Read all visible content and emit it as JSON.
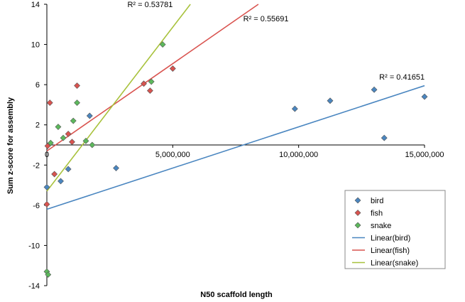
{
  "chart_data": {
    "type": "scatter",
    "xlabel": "N50 scaffold length",
    "ylabel": "Sum z-score for assembly",
    "xlim": [
      0,
      15000000
    ],
    "ylim": [
      -14,
      14
    ],
    "x_ticks": [
      {
        "value": 0,
        "label": "0"
      },
      {
        "value": 5000000,
        "label": "5,000,000"
      },
      {
        "value": 10000000,
        "label": "10,000,000"
      },
      {
        "value": 15000000,
        "label": "15,000,000"
      }
    ],
    "y_ticks": [
      {
        "value": 14,
        "label": "14"
      },
      {
        "value": 10,
        "label": "10"
      },
      {
        "value": 6,
        "label": "6"
      },
      {
        "value": 2,
        "label": "2"
      },
      {
        "value": -2,
        "label": "-2"
      },
      {
        "value": -6,
        "label": "-6"
      },
      {
        "value": -10,
        "label": "-10"
      },
      {
        "value": -14,
        "label": "-14"
      }
    ],
    "legend_position": "right",
    "series": [
      {
        "name": "bird",
        "color": "#4a86c0",
        "marker": "diamond",
        "points": [
          {
            "x": 0,
            "y": -4.2
          },
          {
            "x": 550000,
            "y": -3.6
          },
          {
            "x": 850000,
            "y": -2.4
          },
          {
            "x": 1700000,
            "y": 2.9
          },
          {
            "x": 2750000,
            "y": -2.3
          },
          {
            "x": 9850000,
            "y": 3.6
          },
          {
            "x": 11250000,
            "y": 4.4
          },
          {
            "x": 13000000,
            "y": 5.5
          },
          {
            "x": 13400000,
            "y": 0.7
          },
          {
            "x": 15000000,
            "y": 4.8
          }
        ]
      },
      {
        "name": "fish",
        "color": "#d9534f",
        "marker": "diamond",
        "points": [
          {
            "x": 0,
            "y": -5.9
          },
          {
            "x": 30000,
            "y": -0.1
          },
          {
            "x": 120000,
            "y": 4.2
          },
          {
            "x": 300000,
            "y": -2.9
          },
          {
            "x": 850000,
            "y": 1.1
          },
          {
            "x": 1000000,
            "y": 0.3
          },
          {
            "x": 1200000,
            "y": 5.9
          },
          {
            "x": 3850000,
            "y": 6.1
          },
          {
            "x": 4100000,
            "y": 5.4
          },
          {
            "x": 5000000,
            "y": 7.6
          }
        ]
      },
      {
        "name": "snake",
        "color": "#5cb85c",
        "marker": "diamond",
        "points": [
          {
            "x": 0,
            "y": -12.6
          },
          {
            "x": 50000,
            "y": -12.9
          },
          {
            "x": 150000,
            "y": 0.2
          },
          {
            "x": 450000,
            "y": 1.8
          },
          {
            "x": 650000,
            "y": 0.7
          },
          {
            "x": 1050000,
            "y": 2.4
          },
          {
            "x": 1200000,
            "y": 4.2
          },
          {
            "x": 1550000,
            "y": 0.4
          },
          {
            "x": 1800000,
            "y": 0.0
          },
          {
            "x": 4150000,
            "y": 6.3
          },
          {
            "x": 4600000,
            "y": 10.0
          }
        ]
      }
    ],
    "trendlines": [
      {
        "name": "Linear(bird)",
        "color": "#4a86c0",
        "x_range": [
          0,
          15000000
        ],
        "y_range": [
          -6.4,
          5.9
        ],
        "r2_label": "R² = 0.41651",
        "r2_anchor": [
          13200000,
          6.5
        ]
      },
      {
        "name": "Linear(fish)",
        "color": "#d9534f",
        "x_range": [
          0,
          8400000
        ],
        "y_range": [
          -0.6,
          14
        ],
        "r2_label": "R² = 0.55691",
        "r2_anchor": [
          7800000,
          12.3
        ]
      },
      {
        "name": "Linear(snake)",
        "color": "#a8c23c",
        "x_range": [
          0,
          5700000
        ],
        "y_range": [
          -4.6,
          14
        ],
        "r2_label": "R² = 0.53781",
        "r2_anchor": [
          3200000,
          13.7
        ]
      }
    ],
    "legend": [
      "bird",
      "fish",
      "snake",
      "Linear(bird)",
      "Linear(fish)",
      "Linear(snake)"
    ]
  }
}
